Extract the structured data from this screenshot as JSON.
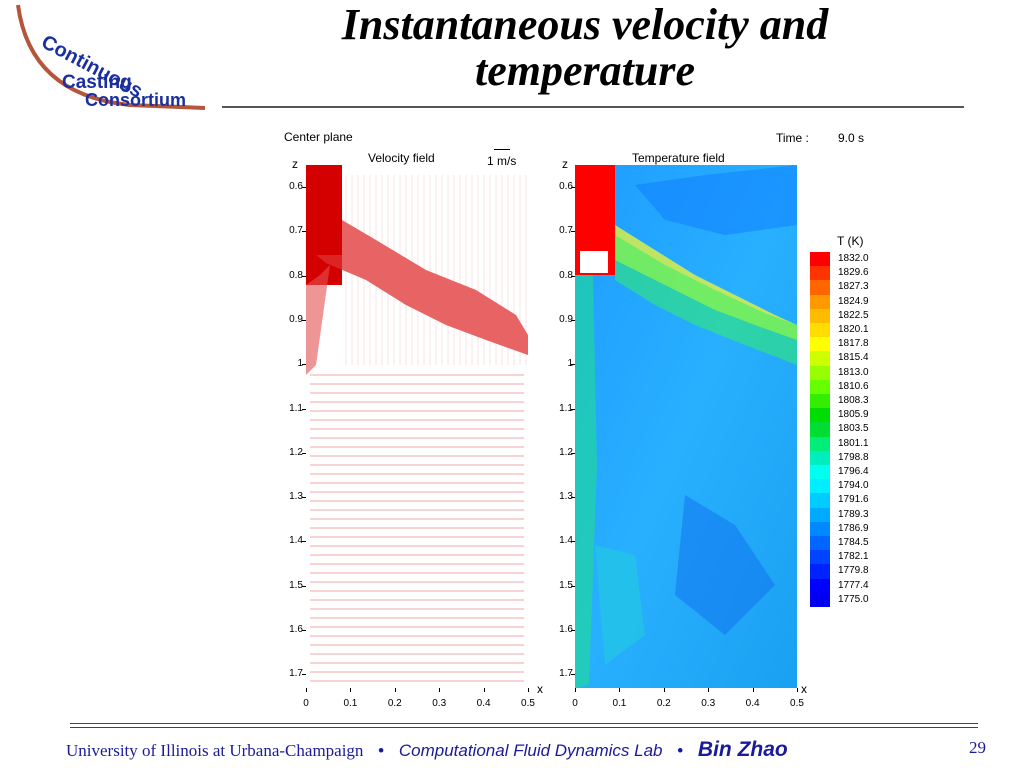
{
  "slide": {
    "title_line1": "Instantaneous velocity and",
    "title_line2": "temperature"
  },
  "logo": {
    "line1": "Continuous",
    "line2": "Casting",
    "line3": "Consortium"
  },
  "header": {
    "center_plane": "Center plane",
    "time_label": "Time :",
    "time_value": "9.0 s"
  },
  "velocity_panel": {
    "title": "Velocity field",
    "z_label": "z",
    "x_label": "x",
    "ref_vector": "1 m/s"
  },
  "temperature_panel": {
    "title": "Temperature field",
    "z_label": "z",
    "x_label": "x"
  },
  "axes": {
    "z_ticks": [
      "0.6",
      "0.7",
      "0.8",
      "0.9",
      "1",
      "1.1",
      "1.2",
      "1.3",
      "1.4",
      "1.5",
      "1.6",
      "1.7"
    ],
    "x_ticks": [
      "0",
      "0.1",
      "0.2",
      "0.3",
      "0.4",
      "0.5"
    ]
  },
  "colorbar": {
    "title": "T (K)",
    "levels": [
      "1832.0",
      "1829.6",
      "1827.3",
      "1824.9",
      "1822.5",
      "1820.1",
      "1817.8",
      "1815.4",
      "1813.0",
      "1810.6",
      "1808.3",
      "1805.9",
      "1803.5",
      "1801.1",
      "1798.8",
      "1796.4",
      "1794.0",
      "1791.6",
      "1789.3",
      "1786.9",
      "1784.5",
      "1782.1",
      "1779.8",
      "1777.4",
      "1775.0"
    ],
    "colors": [
      "#ff0000",
      "#ff3300",
      "#ff6600",
      "#ff9900",
      "#ffbb00",
      "#ffdd00",
      "#ffff00",
      "#ccff00",
      "#99ff00",
      "#66ff00",
      "#33ee00",
      "#00dd00",
      "#00dd33",
      "#00ee77",
      "#00eebb",
      "#00ffee",
      "#00eeff",
      "#00ccff",
      "#00aaff",
      "#0088ff",
      "#0066ff",
      "#0044ff",
      "#0022ff",
      "#0000ff",
      "#0000ee"
    ]
  },
  "footer": {
    "university": "University of Illinois at Urbana-Champaign",
    "separator": "•",
    "lab": "Computational Fluid Dynamics Lab",
    "author": "Bin Zhao",
    "page_number": "29"
  }
}
